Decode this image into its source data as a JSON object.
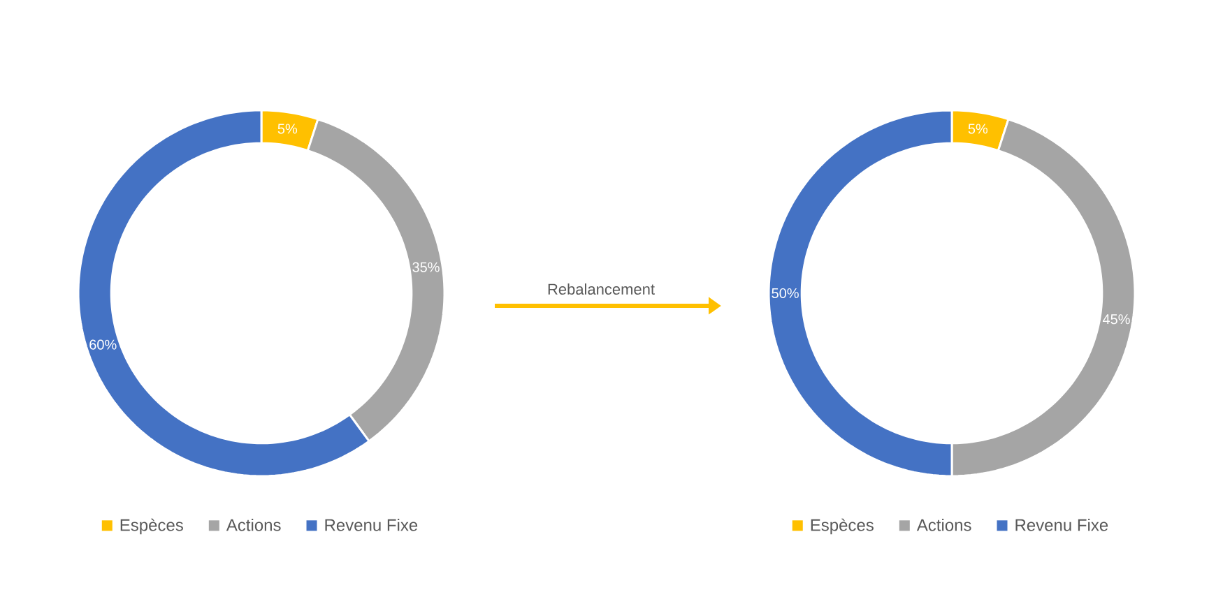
{
  "chart_data": [
    {
      "type": "donut",
      "categories": [
        "Espèces",
        "Actions",
        "Revenu Fixe"
      ],
      "values": [
        5,
        35,
        60
      ],
      "value_labels": [
        "5%",
        "35%",
        "60%"
      ],
      "colors": [
        "#ffc000",
        "#a5a5a5",
        "#4472c4"
      ],
      "legend": "bottom",
      "annotations": [
        "Rebalancement"
      ]
    },
    {
      "type": "donut",
      "categories": [
        "Espèces",
        "Actions",
        "Revenu Fixe"
      ],
      "values": [
        5,
        45,
        50
      ],
      "value_labels": [
        "5%",
        "45%",
        "50%"
      ],
      "colors": [
        "#ffc000",
        "#a5a5a5",
        "#4472c4"
      ],
      "legend": "bottom"
    }
  ]
}
